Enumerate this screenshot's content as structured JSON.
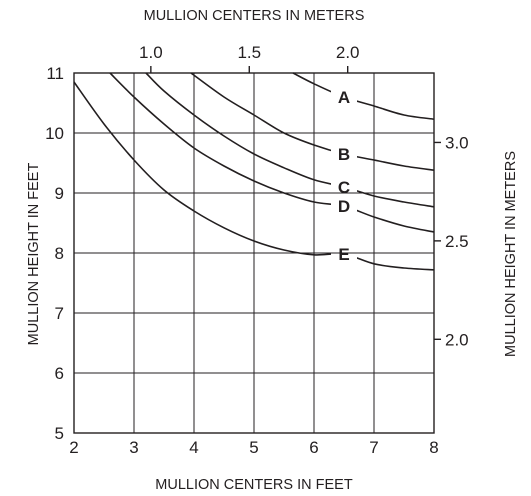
{
  "chart_data": {
    "type": "line",
    "title": "",
    "xlabel": "MULLION CENTERS IN FEET",
    "ylabel": "MULLION HEIGHT IN FEET",
    "x2label": "MULLION CENTERS IN METERS",
    "y2label": "MULLION HEIGHT IN METERS",
    "xlim": [
      2,
      8
    ],
    "ylim": [
      5,
      11
    ],
    "x_ticks": [
      "2",
      "3",
      "4",
      "5",
      "6",
      "7",
      "8"
    ],
    "y_ticks": [
      "5",
      "6",
      "7",
      "8",
      "9",
      "10",
      "11"
    ],
    "x2_ticks": [
      {
        "label": "1.0",
        "value": 1.0
      },
      {
        "label": "1.5",
        "value": 1.5
      },
      {
        "label": "2.0",
        "value": 2.0
      }
    ],
    "y2_ticks": [
      {
        "label": "2.0",
        "value": 2.0
      },
      {
        "label": "2.5",
        "value": 2.5
      },
      {
        "label": "3.0",
        "value": 3.0
      }
    ],
    "grid": true,
    "series": [
      {
        "name": "A",
        "label_at": [
          6.5,
          10.6
        ],
        "x": [
          5.65,
          6.0,
          6.5,
          7.0,
          7.5,
          8.0
        ],
        "y": [
          11.0,
          10.82,
          10.6,
          10.45,
          10.3,
          10.23
        ]
      },
      {
        "name": "B",
        "label_at": [
          6.5,
          9.65
        ],
        "x": [
          3.95,
          4.5,
          5.0,
          5.5,
          6.0,
          6.5,
          7.0,
          7.5,
          8.0
        ],
        "y": [
          11.0,
          10.6,
          10.3,
          10.0,
          9.8,
          9.65,
          9.55,
          9.45,
          9.38
        ]
      },
      {
        "name": "C",
        "label_at": [
          6.5,
          9.1
        ],
        "x": [
          3.2,
          3.5,
          4.0,
          4.5,
          5.0,
          5.5,
          6.0,
          6.5,
          7.0,
          7.5,
          8.0
        ],
        "y": [
          11.0,
          10.7,
          10.3,
          9.95,
          9.65,
          9.42,
          9.22,
          9.1,
          8.95,
          8.85,
          8.77
        ]
      },
      {
        "name": "D",
        "label_at": [
          6.5,
          8.78
        ],
        "x": [
          2.6,
          3.0,
          3.5,
          4.0,
          4.5,
          5.0,
          5.5,
          6.0,
          6.5,
          7.0,
          7.5,
          8.0
        ],
        "y": [
          11.0,
          10.6,
          10.15,
          9.75,
          9.45,
          9.2,
          9.0,
          8.85,
          8.78,
          8.6,
          8.45,
          8.35
        ]
      },
      {
        "name": "E",
        "label_at": [
          6.5,
          7.98
        ],
        "x": [
          2.0,
          2.5,
          3.0,
          3.5,
          4.0,
          4.5,
          5.0,
          5.5,
          6.0,
          6.5,
          7.0,
          7.5,
          8.0
        ],
        "y": [
          10.85,
          10.15,
          9.55,
          9.05,
          8.7,
          8.42,
          8.2,
          8.05,
          7.97,
          7.98,
          7.82,
          7.75,
          7.72
        ]
      }
    ]
  }
}
